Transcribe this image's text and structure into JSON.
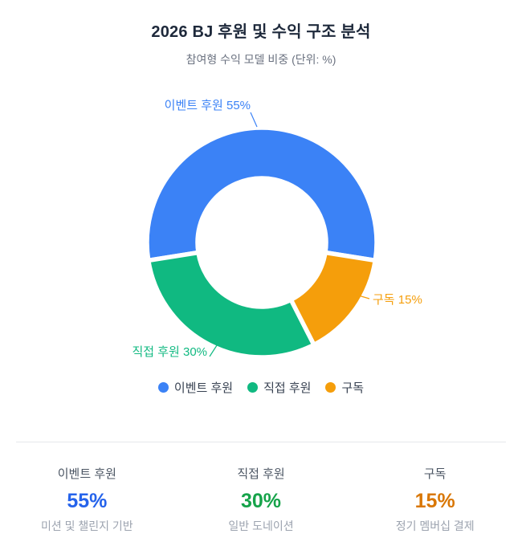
{
  "header": {
    "title": "2026 BJ 후원 및 수익 구조 분석",
    "subtitle": "참여형 수익 모델 비중 (단위: %)"
  },
  "chart_data": {
    "type": "pie",
    "variant": "donut",
    "title": "2026 BJ 후원 및 수익 구조 분석",
    "subtitle": "참여형 수익 모델 비중 (단위: %)",
    "unit": "%",
    "categories": [
      "이벤트 후원",
      "직접 후원",
      "구독"
    ],
    "values": [
      55,
      30,
      15
    ],
    "colors": [
      "#3b82f6",
      "#10b981",
      "#f59e0b"
    ],
    "callouts": [
      "이벤트 후원 55%",
      "직접 후원 30%",
      "구독 15%"
    ],
    "layout": {
      "start_angle_deg_from_top": 99,
      "direction": "counterclockwise",
      "outer_radius": 143,
      "inner_radius": 80,
      "gap_color": "#ffffff",
      "gap_width": 5.5,
      "legend_position": "bottom"
    }
  },
  "legend": {
    "items": [
      {
        "label": "이벤트 후원",
        "color": "#3b82f6"
      },
      {
        "label": "직접 후원",
        "color": "#10b981"
      },
      {
        "label": "구독",
        "color": "#f59e0b"
      }
    ]
  },
  "stats": {
    "columns": [
      {
        "label": "이벤트 후원",
        "value": "55%",
        "caption": "미션 및 챌린지 기반",
        "color": "#2563eb"
      },
      {
        "label": "직접 후원",
        "value": "30%",
        "caption": "일반 도네이션",
        "color": "#16a34a"
      },
      {
        "label": "구독",
        "value": "15%",
        "caption": "정기 멤버십 결제",
        "color": "#d97706"
      }
    ]
  }
}
